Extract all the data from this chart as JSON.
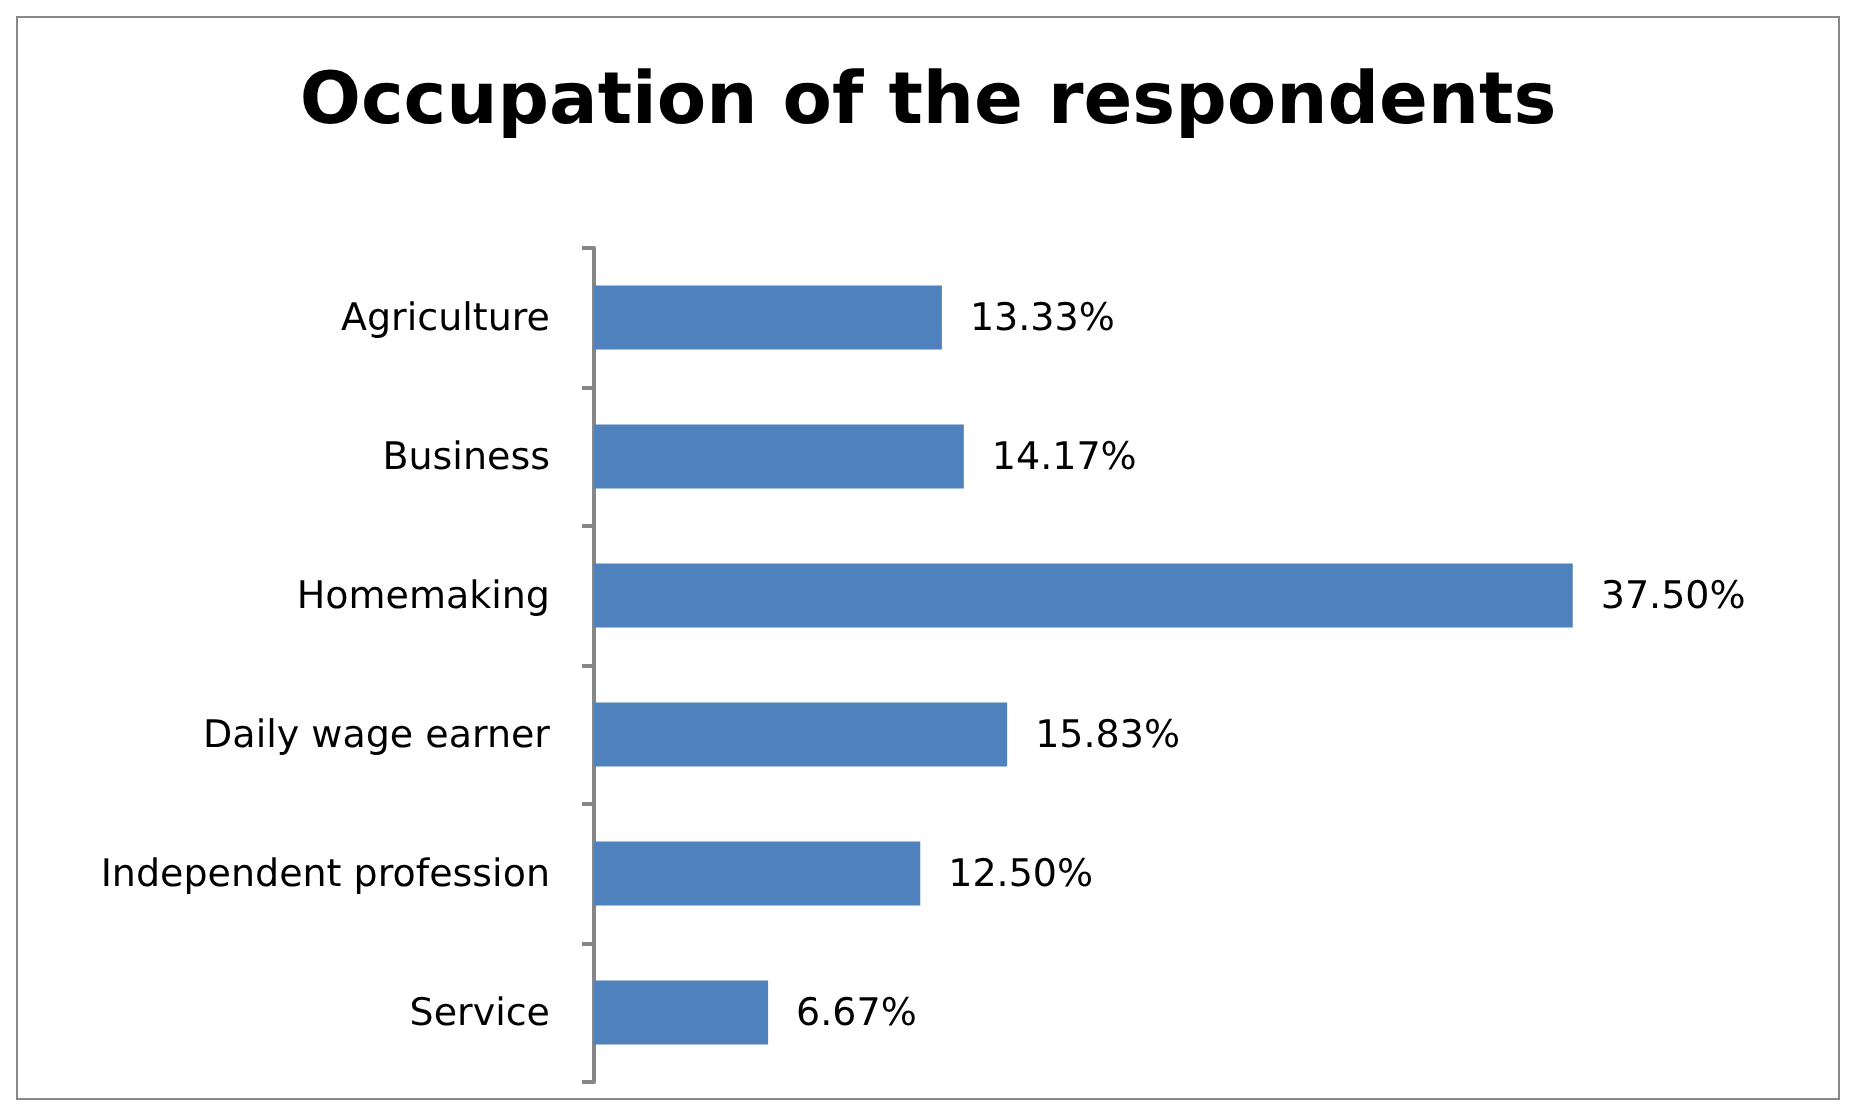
{
  "chart_data": {
    "type": "bar",
    "orientation": "horizontal",
    "title": "Occupation of the respondents",
    "categories": [
      "Agriculture",
      "Business",
      "Homemaking",
      "Daily wage earner",
      "Independent profession",
      "Service"
    ],
    "values": [
      13.33,
      14.17,
      37.5,
      15.83,
      12.5,
      6.67
    ],
    "value_labels": [
      "13.33%",
      "14.17%",
      "37.50%",
      "15.83%",
      "12.50%",
      "6.67%"
    ],
    "color": "#4f81bd"
  }
}
